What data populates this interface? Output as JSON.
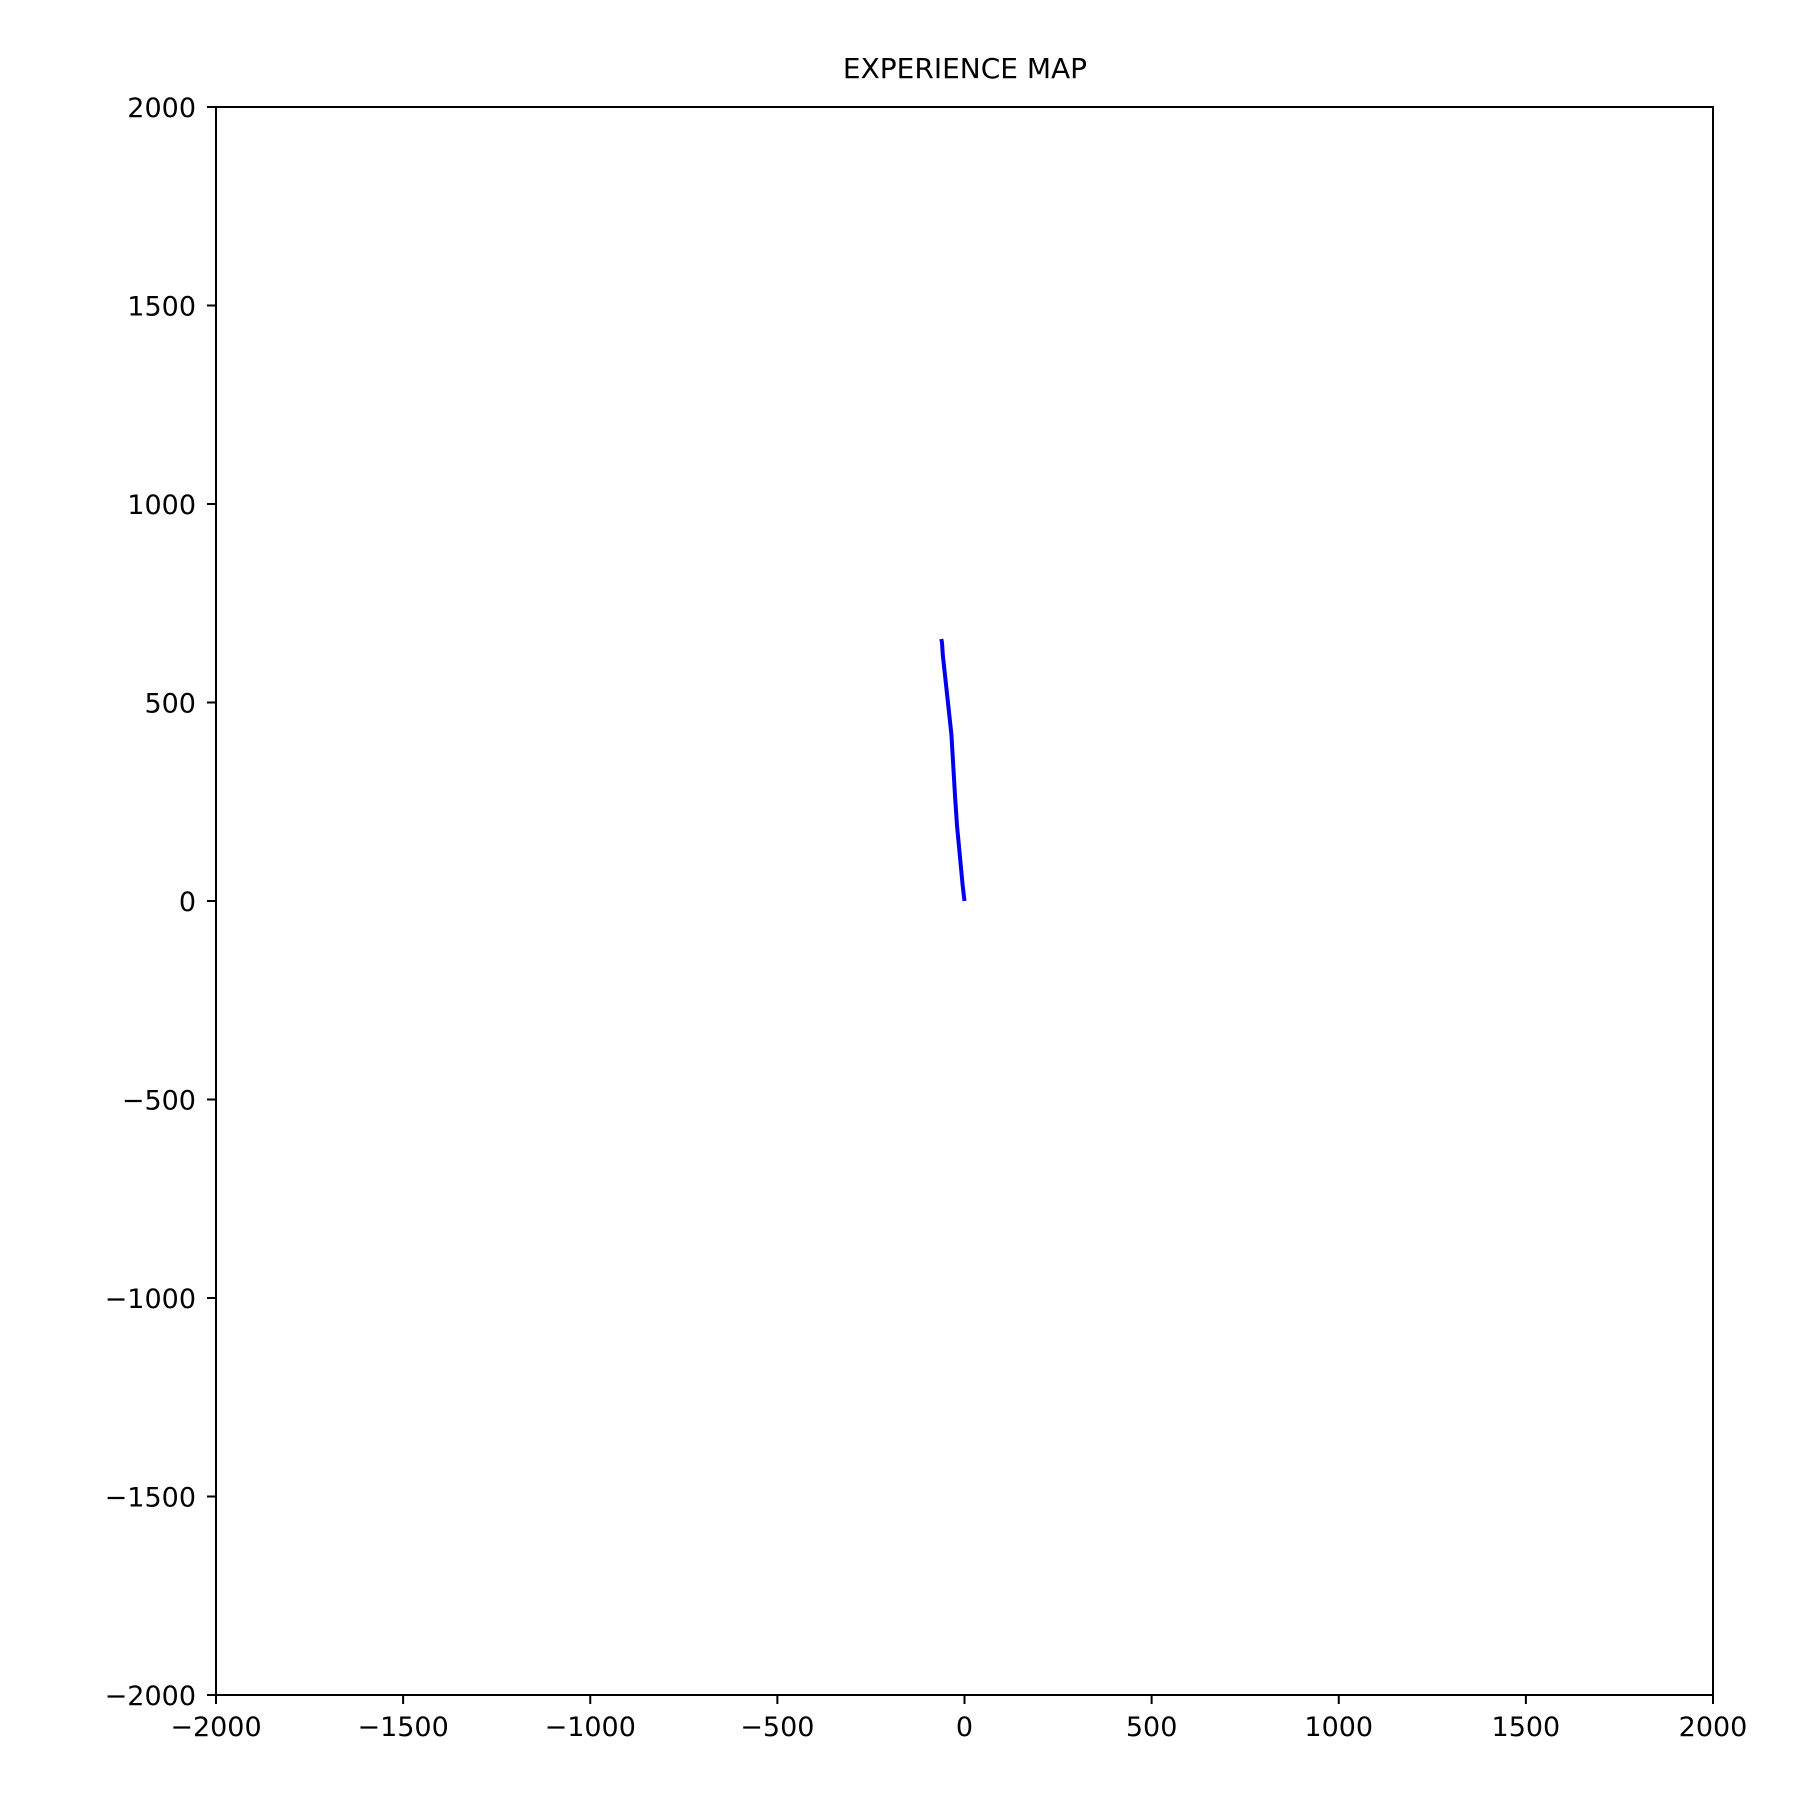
{
  "chart_data": {
    "type": "line",
    "title": "EXPERIENCE MAP",
    "xlabel": "",
    "ylabel": "",
    "xlim": [
      -2000,
      2000
    ],
    "ylim": [
      -2000,
      2000
    ],
    "x_ticks": [
      -2000,
      -1500,
      -1000,
      -500,
      0,
      500,
      1000,
      1500,
      2000
    ],
    "y_ticks": [
      -2000,
      -1500,
      -1000,
      -500,
      0,
      500,
      1000,
      1500,
      2000
    ],
    "x_tick_labels": [
      "−2000",
      "−1500",
      "−1000",
      "−500",
      "0",
      "500",
      "1000",
      "1500",
      "2000"
    ],
    "y_tick_labels": [
      "−2000",
      "−1500",
      "−1000",
      "−500",
      "0",
      "500",
      "1000",
      "1500",
      "2000"
    ],
    "grid": false,
    "legend": "none",
    "series": [
      {
        "color": "#0000ee",
        "x": [
          0,
          -5,
          -20,
          -25,
          -35,
          -58,
          -60,
          -62
        ],
        "y": [
          0,
          40,
          190,
          260,
          420,
          620,
          650,
          660
        ]
      }
    ]
  }
}
